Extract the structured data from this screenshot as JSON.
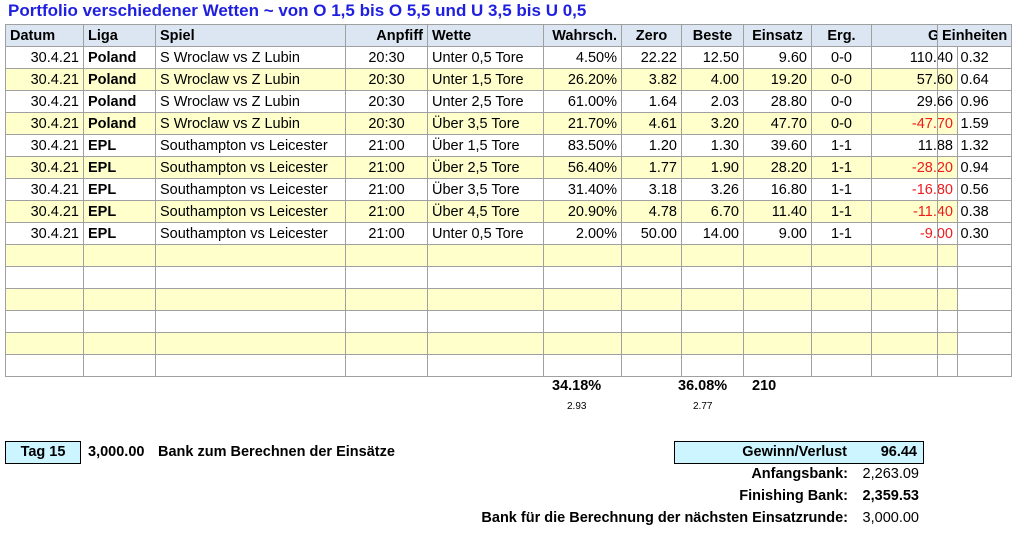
{
  "title": "Portfolio verschiedener Wetten ~ von O 1,5 bis O 5,5 und U 3,5 bis U 0,5",
  "headers": {
    "datum": "Datum",
    "liga": "Liga",
    "spiel": "Spiel",
    "anpfiff": "Anpfiff",
    "wette": "Wette",
    "wahrsch": "Wahrsch.",
    "zero": "Zero",
    "beste": "Beste",
    "einsatz": "Einsatz",
    "erg": "Erg.",
    "gv": "G/V",
    "einheiten": "Einheiten"
  },
  "rows": [
    {
      "datum": "30.4.21",
      "liga": "Poland",
      "spiel": "S Wroclaw vs Z Lubin",
      "anpfiff": "20:30",
      "wette": "Unter 0,5 Tore",
      "wahrsch": "4.50%",
      "zero": "22.22",
      "beste": "12.50",
      "einsatz": "9.60",
      "erg": "0-0",
      "gv": "110.40",
      "einheiten": "0.32",
      "negative": false
    },
    {
      "datum": "30.4.21",
      "liga": "Poland",
      "spiel": "S Wroclaw vs Z Lubin",
      "anpfiff": "20:30",
      "wette": "Unter 1,5 Tore",
      "wahrsch": "26.20%",
      "zero": "3.82",
      "beste": "4.00",
      "einsatz": "19.20",
      "erg": "0-0",
      "gv": "57.60",
      "einheiten": "0.64",
      "negative": false
    },
    {
      "datum": "30.4.21",
      "liga": "Poland",
      "spiel": "S Wroclaw vs Z Lubin",
      "anpfiff": "20:30",
      "wette": "Unter 2,5 Tore",
      "wahrsch": "61.00%",
      "zero": "1.64",
      "beste": "2.03",
      "einsatz": "28.80",
      "erg": "0-0",
      "gv": "29.66",
      "einheiten": "0.96",
      "negative": false
    },
    {
      "datum": "30.4.21",
      "liga": "Poland",
      "spiel": "S Wroclaw vs Z Lubin",
      "anpfiff": "20:30",
      "wette": "Über 3,5 Tore",
      "wahrsch": "21.70%",
      "zero": "4.61",
      "beste": "3.20",
      "einsatz": "47.70",
      "erg": "0-0",
      "gv": "-47.70",
      "einheiten": "1.59",
      "negative": true
    },
    {
      "datum": "30.4.21",
      "liga": "EPL",
      "spiel": "Southampton vs Leicester",
      "anpfiff": "21:00",
      "wette": "Über 1,5 Tore",
      "wahrsch": "83.50%",
      "zero": "1.20",
      "beste": "1.30",
      "einsatz": "39.60",
      "erg": "1-1",
      "gv": "11.88",
      "einheiten": "1.32",
      "negative": false
    },
    {
      "datum": "30.4.21",
      "liga": "EPL",
      "spiel": "Southampton vs Leicester",
      "anpfiff": "21:00",
      "wette": "Über 2,5 Tore",
      "wahrsch": "56.40%",
      "zero": "1.77",
      "beste": "1.90",
      "einsatz": "28.20",
      "erg": "1-1",
      "gv": "-28.20",
      "einheiten": "0.94",
      "negative": true
    },
    {
      "datum": "30.4.21",
      "liga": "EPL",
      "spiel": "Southampton vs Leicester",
      "anpfiff": "21:00",
      "wette": "Über 3,5 Tore",
      "wahrsch": "31.40%",
      "zero": "3.18",
      "beste": "3.26",
      "einsatz": "16.80",
      "erg": "1-1",
      "gv": "-16.80",
      "einheiten": "0.56",
      "negative": true
    },
    {
      "datum": "30.4.21",
      "liga": "EPL",
      "spiel": "Southampton vs Leicester",
      "anpfiff": "21:00",
      "wette": "Über 4,5 Tore",
      "wahrsch": "20.90%",
      "zero": "4.78",
      "beste": "6.70",
      "einsatz": "11.40",
      "erg": "1-1",
      "gv": "-11.40",
      "einheiten": "0.38",
      "negative": true
    },
    {
      "datum": "30.4.21",
      "liga": "EPL",
      "spiel": "Southampton vs Leicester",
      "anpfiff": "21:00",
      "wette": "Unter 0,5 Tore",
      "wahrsch": "2.00%",
      "zero": "50.00",
      "beste": "14.00",
      "einsatz": "9.00",
      "erg": "1-1",
      "gv": "-9.00",
      "einheiten": "0.30",
      "negative": true
    }
  ],
  "empty_rows": 6,
  "totals": {
    "wahrsch": "34.18%",
    "wahrsch_sub": "2.93",
    "beste": "36.08%",
    "beste_sub": "2.77",
    "einsatz": "210"
  },
  "tag": {
    "label": "Tag 15",
    "bank_value": "3,000.00",
    "bank_label": "Bank zum Berechnen der Einsätze"
  },
  "summary": {
    "gv_label": "Gewinn/Verlust",
    "gv_value": "96.44",
    "anfang_label": "Anfangsbank:",
    "anfang_value": "2,263.09",
    "finish_label": "Finishing Bank:",
    "finish_value": "2,359.53",
    "next_label": "Bank für die Berechnung der nächsten Einsatzrunde:",
    "next_value": "3,000.00"
  },
  "colors": {
    "title": "#1f1fe0",
    "header_bg": "#dce6f2",
    "stripe": "#ffffcc",
    "negative": "#ee1c1c",
    "box_bg": "#ccf5ff"
  }
}
